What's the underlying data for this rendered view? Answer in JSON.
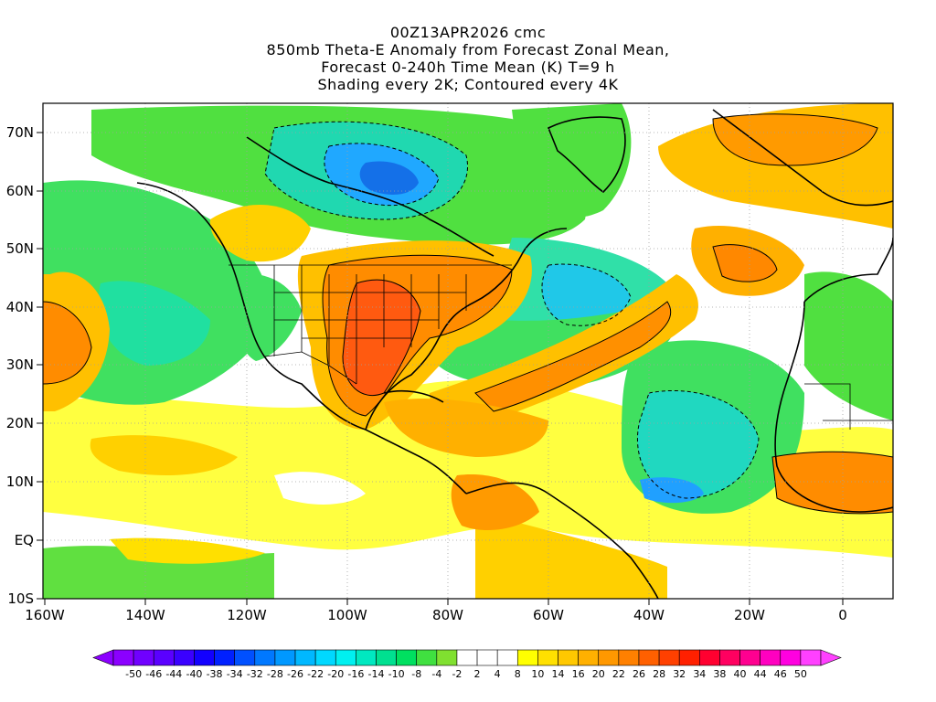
{
  "title": {
    "line1": "00Z13APR2026 cmc",
    "line2": "850mb Theta-E Anomaly from Forecast Zonal Mean,",
    "line3": "Forecast 0-240h Time Mean (K) T=9 h",
    "line4": "Shading every 2K; Contoured every 4K"
  },
  "y_axis_labels": [
    "70N",
    "60N",
    "50N",
    "40N",
    "30N",
    "20N",
    "10N",
    "EQ",
    "10S"
  ],
  "x_axis_labels": [
    "160W",
    "140W",
    "120W",
    "100W",
    "80W",
    "60W",
    "40W",
    "20W",
    "0"
  ],
  "colorbar": {
    "labels": [
      "-50",
      "-46",
      "-44",
      "-40",
      "-38",
      "-34",
      "-32",
      "-28",
      "-26",
      "-22",
      "-20",
      "-16",
      "-14",
      "-10",
      "-8",
      "-4",
      "-2",
      "2",
      "4",
      "8",
      "10",
      "14",
      "16",
      "20",
      "22",
      "26",
      "28",
      "32",
      "34",
      "38",
      "40",
      "44",
      "46",
      "50"
    ],
    "colors": [
      "#8b00ff",
      "#7000ff",
      "#5a00ff",
      "#3a00ff",
      "#1200ff",
      "#0020ff",
      "#0050ff",
      "#0078ff",
      "#0098ff",
      "#00b8ff",
      "#00d8ff",
      "#00f0f0",
      "#00e8c0",
      "#00e090",
      "#00e060",
      "#40e040",
      "#80e030",
      "#ffffff",
      "#ffffff",
      "#ffffff",
      "#ffff00",
      "#ffe000",
      "#ffc800",
      "#ffb000",
      "#ff9800",
      "#ff8000",
      "#ff6000",
      "#ff4000",
      "#ff2000",
      "#ff0030",
      "#ff0060",
      "#ff0090",
      "#ff00c0",
      "#ff00e0",
      "#ff40ff"
    ]
  },
  "legend_colors": {
    "negative_strong": "#1a70e0",
    "negative_mid": "#30d8c8",
    "negative_weak": "#50e040",
    "neutral": "#ffffff",
    "positive_weak": "#ffff30",
    "positive_mid": "#ffc000",
    "positive_strong": "#ff8800",
    "positive_max": "#ff4010"
  }
}
